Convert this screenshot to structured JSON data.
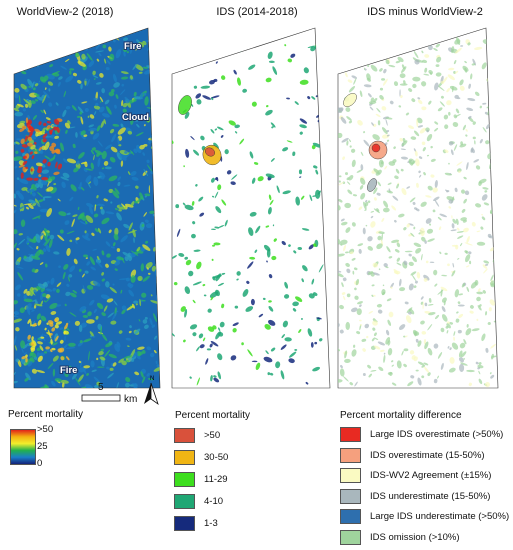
{
  "panels": {
    "left": {
      "title": "WorldView-2 (2018)"
    },
    "middle": {
      "title": "IDS (2014-2018)"
    },
    "right": {
      "title": "IDS minus WorldView-2"
    }
  },
  "map_labels": {
    "fire_top": "Fire",
    "cloud": "Cloud",
    "fire_bottom": "Fire"
  },
  "scale_bar": {
    "value": "5",
    "unit": "km"
  },
  "north_arrow": {
    "label": "N"
  },
  "legend_gradient": {
    "title": "Percent mortality",
    "labels": {
      "high": ">50",
      "mid": "25",
      "low": "0"
    },
    "colors": [
      "#e2231a",
      "#f3b311",
      "#f2ee2c",
      "#22b14c",
      "#1a7fc8",
      "#14237a"
    ]
  },
  "legend_ids": {
    "title": "Percent mortality",
    "items": [
      {
        "label": ">50",
        "color": "#d9513b"
      },
      {
        "label": "30-50",
        "color": "#f0b514"
      },
      {
        "label": "11-29",
        "color": "#3dde1e"
      },
      {
        "label": "4-10",
        "color": "#1fa774"
      },
      {
        "label": "1-3",
        "color": "#152a7c"
      }
    ]
  },
  "legend_diff": {
    "title": "Percent mortality difference",
    "items": [
      {
        "label": "Large IDS overestimate (>50%)",
        "color": "#e82a22"
      },
      {
        "label": "IDS overestimate (15-50%)",
        "color": "#f5a07e"
      },
      {
        "label": "IDS-WV2 Agreement (±15%)",
        "color": "#fafac2"
      },
      {
        "label": "IDS underestimate (15-50%)",
        "color": "#a9b7bd"
      },
      {
        "label": "Large IDS underestimate (>50%)",
        "color": "#2e6fae"
      },
      {
        "label": "IDS omission (>10%)",
        "color": "#9fd49d"
      }
    ]
  }
}
